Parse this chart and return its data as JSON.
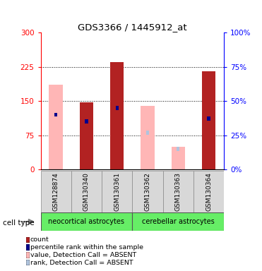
{
  "title": "GDS3366 / 1445912_at",
  "samples": [
    "GSM128874",
    "GSM130340",
    "GSM130361",
    "GSM130362",
    "GSM130363",
    "GSM130364"
  ],
  "value_bars": [
    185,
    147,
    235,
    140,
    50,
    215
  ],
  "value_absent": [
    true,
    false,
    false,
    true,
    true,
    false
  ],
  "rank_values": [
    40,
    35,
    45,
    27,
    15,
    37
  ],
  "rank_absent": [
    false,
    false,
    false,
    true,
    true,
    false
  ],
  "rank_heights": [
    8,
    8,
    8,
    8,
    8,
    8
  ],
  "ylim_left": [
    0,
    300
  ],
  "yticks_left": [
    0,
    75,
    150,
    225,
    300
  ],
  "yticks_right": [
    0,
    25,
    50,
    75,
    100
  ],
  "value_bar_color_present": "#b22222",
  "value_bar_color_absent": "#ffb6b6",
  "rank_bar_color_present": "#00008b",
  "rank_bar_color_absent": "#b0c4de",
  "neocortical_color": "#66ee66",
  "cerebellar_color": "#66ee66",
  "legend_items": [
    {
      "label": "count",
      "color": "#b22222"
    },
    {
      "label": "percentile rank within the sample",
      "color": "#00008b"
    },
    {
      "label": "value, Detection Call = ABSENT",
      "color": "#ffb6b6"
    },
    {
      "label": "rank, Detection Call = ABSENT",
      "color": "#b0c4de"
    }
  ]
}
